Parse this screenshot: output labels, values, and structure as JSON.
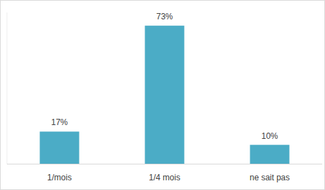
{
  "chart_data": {
    "type": "bar",
    "categories": [
      "1/mois",
      "1/4 mois",
      "ne sait pas"
    ],
    "values": [
      17,
      73,
      10
    ],
    "value_labels": [
      "17%",
      "73%",
      "10%"
    ],
    "color": "#4bacc6",
    "ylim": [
      0,
      80
    ],
    "grid": false,
    "data_labels": true,
    "tick_labels": "x"
  }
}
